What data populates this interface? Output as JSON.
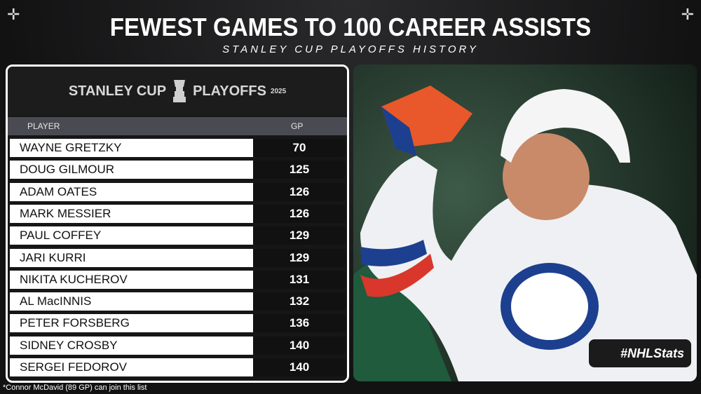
{
  "header": {
    "title": "FEWEST GAMES TO 100 CAREER ASSISTS",
    "subtitle": "STANLEY CUP PLAYOFFS HISTORY"
  },
  "logo": {
    "left": "STANLEY CUP",
    "right": "PLAYOFFS",
    "year": "2025"
  },
  "table": {
    "columns": [
      "PLAYER",
      "GP"
    ],
    "rows": [
      [
        "WAYNE GRETZKY",
        70
      ],
      [
        "DOUG GILMOUR",
        125
      ],
      [
        "ADAM OATES",
        126
      ],
      [
        "MARK MESSIER",
        126
      ],
      [
        "PAUL COFFEY",
        129
      ],
      [
        "JARI KURRI",
        129
      ],
      [
        "NIKITA KUCHEROV",
        131
      ],
      [
        "AL MacINNIS",
        132
      ],
      [
        "PETER FORSBERG",
        136
      ],
      [
        "SIDNEY CROSBY",
        140
      ],
      [
        "SERGEI FEDOROV",
        140
      ]
    ]
  },
  "footnote": "*Connor McDavid (89 GP) can join this list",
  "badge": "#NHLStats"
}
